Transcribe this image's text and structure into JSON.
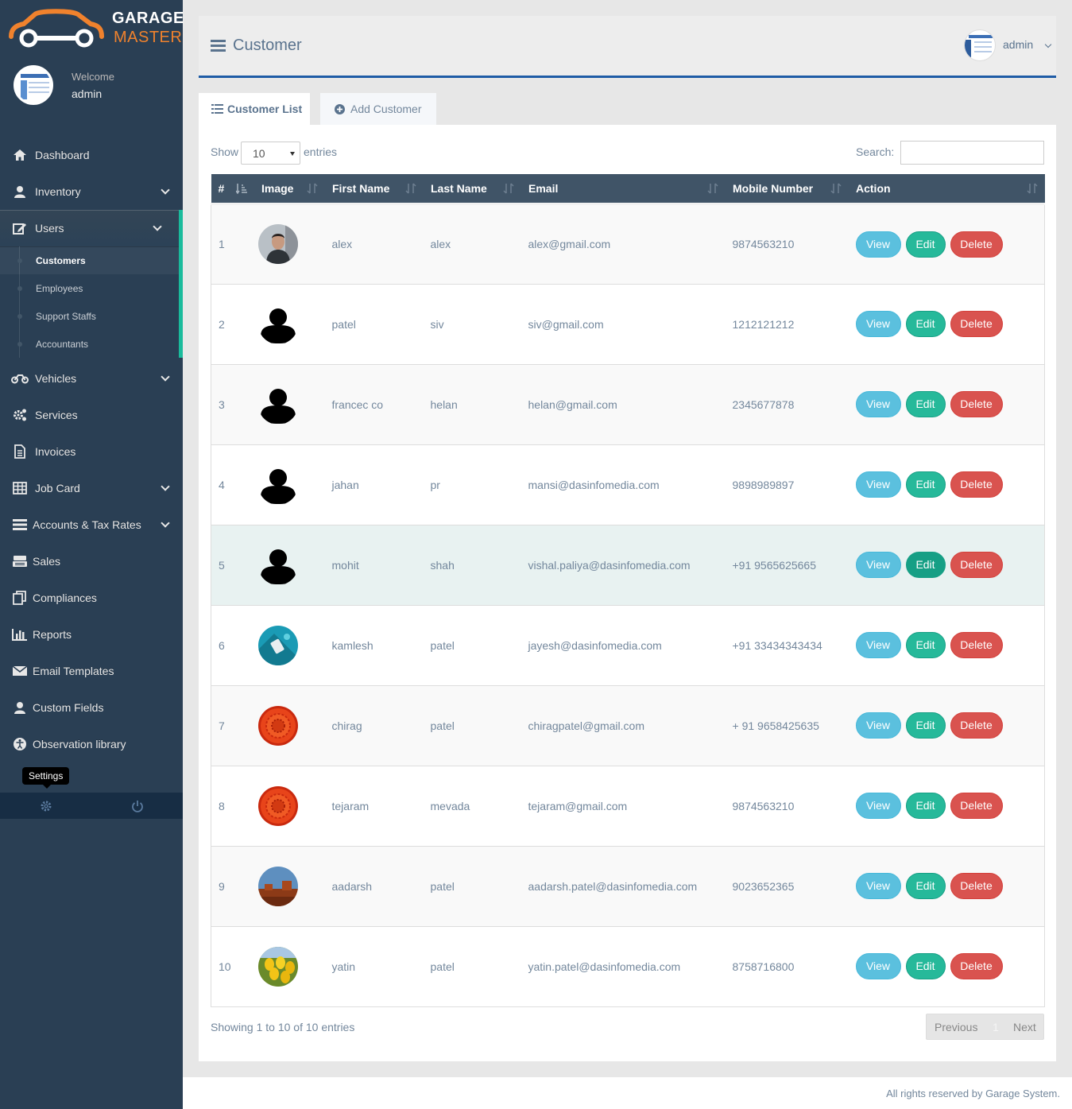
{
  "brand": {
    "line1": "GARAGE",
    "line2": "MASTER"
  },
  "profile": {
    "welcome": "Welcome",
    "name": "admin"
  },
  "menu": {
    "dashboard": "Dashboard",
    "inventory": "Inventory",
    "users": "Users",
    "users_sub": [
      "Customers",
      "Employees",
      "Support Staffs",
      "Accountants"
    ],
    "vehicles": "Vehicles",
    "services": "Services",
    "invoices": "Invoices",
    "job_card": "Job Card",
    "accounts": "Accounts & Tax Rates",
    "sales": "Sales",
    "compliances": "Compliances",
    "reports": "Reports",
    "email_templates": "Email Templates",
    "custom_fields": "Custom Fields",
    "observation": "Observation library"
  },
  "tooltip": "Settings",
  "header": {
    "title": "Customer",
    "user": "admin"
  },
  "tabs": {
    "list": "Customer List",
    "add": "Add Customer"
  },
  "controls": {
    "show": "Show",
    "length": "10",
    "entries": "entries",
    "search": "Search:"
  },
  "table": {
    "columns": [
      "#",
      "Image",
      "First Name",
      "Last Name",
      "Email",
      "Mobile Number",
      "Action"
    ],
    "actions": {
      "view": "View",
      "edit": "Edit",
      "delete": "Delete"
    },
    "rows": [
      {
        "n": "1",
        "first": "alex",
        "last": "alex",
        "email": "alex@gmail.com",
        "mobile": "9874563210",
        "image": "man-photo"
      },
      {
        "n": "2",
        "first": "patel",
        "last": "siv",
        "email": "siv@gmail.com",
        "mobile": "1212121212",
        "image": "default-user"
      },
      {
        "n": "3",
        "first": "francec co",
        "last": "helan",
        "email": "helan@gmail.com",
        "mobile": "2345677878",
        "image": "default-user"
      },
      {
        "n": "4",
        "first": "jahan",
        "last": "pr",
        "email": "mansi@dasinfomedia.com",
        "mobile": "9898989897",
        "image": "default-user"
      },
      {
        "n": "5",
        "first": "mohit",
        "last": "shah",
        "email": "vishal.paliya@dasinfomedia.com",
        "mobile": "+91 9565625665",
        "image": "default-user"
      },
      {
        "n": "6",
        "first": "kamlesh",
        "last": "patel",
        "email": "jayesh@dasinfomedia.com",
        "mobile": "+91 33434343434",
        "image": "teal-photo"
      },
      {
        "n": "7",
        "first": "chirag",
        "last": "patel",
        "email": "chiragpatel@gmail.com",
        "mobile": "+ 91 9658425635",
        "image": "red-flower"
      },
      {
        "n": "8",
        "first": "tejaram",
        "last": "mevada",
        "email": "tejaram@gmail.com",
        "mobile": "9874563210",
        "image": "red-flower"
      },
      {
        "n": "9",
        "first": "aadarsh",
        "last": "patel",
        "email": "aadarsh.patel@dasinfomedia.com",
        "mobile": "9023652365",
        "image": "desert-photo"
      },
      {
        "n": "10",
        "first": "yatin",
        "last": "patel",
        "email": "yatin.patel@dasinfomedia.com",
        "mobile": "8758716800",
        "image": "yellow-tulips"
      }
    ]
  },
  "pagination": {
    "info": "Showing 1 to 10 of 10 entries",
    "previous": "Previous",
    "page": "1",
    "next": "Next"
  },
  "footer": "All rights reserved by Garage System.",
  "colors": {
    "sidebar": "#2a3f54",
    "accent": "#1abb9c",
    "brand_orange": "#f0822d",
    "header_blue": "#1f5ca6"
  }
}
